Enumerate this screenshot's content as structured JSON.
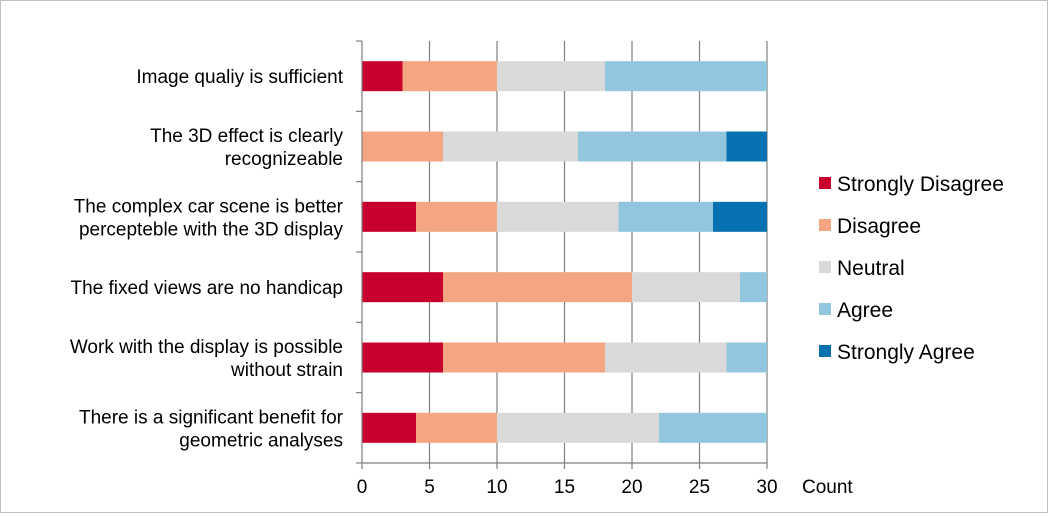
{
  "chart_data": {
    "type": "bar",
    "orientation": "horizontal",
    "stacked": true,
    "title": "",
    "xlabel": "Count",
    "ylabel": "",
    "xlim": [
      0,
      30
    ],
    "xticks": [
      0,
      5,
      10,
      15,
      20,
      25,
      30
    ],
    "grid": "vertical",
    "legend_position": "right",
    "categories": [
      [
        "Image qualiy is sufficient"
      ],
      [
        "The 3D effect is clearly",
        "recognizeable"
      ],
      [
        "The complex car scene is better",
        "percepteble with the 3D display"
      ],
      [
        "The fixed views are no handicap"
      ],
      [
        "Work with the display is possible",
        "without strain"
      ],
      [
        "There is a significant benefit for",
        "geometric analyses"
      ]
    ],
    "series": [
      {
        "name": "Strongly Disagree",
        "color": "#c8002d",
        "values": [
          3,
          0,
          4,
          6,
          6,
          4
        ]
      },
      {
        "name": "Disagree",
        "color": "#f4a582",
        "values": [
          7,
          6,
          6,
          14,
          12,
          6
        ]
      },
      {
        "name": "Neutral",
        "color": "#d9d9d9",
        "values": [
          8,
          10,
          9,
          8,
          9,
          12
        ]
      },
      {
        "name": "Agree",
        "color": "#92c5de",
        "values": [
          12,
          11,
          7,
          2,
          3,
          8
        ]
      },
      {
        "name": "Strongly Agree",
        "color": "#0571b0",
        "values": [
          0,
          3,
          4,
          0,
          0,
          0
        ]
      }
    ]
  }
}
